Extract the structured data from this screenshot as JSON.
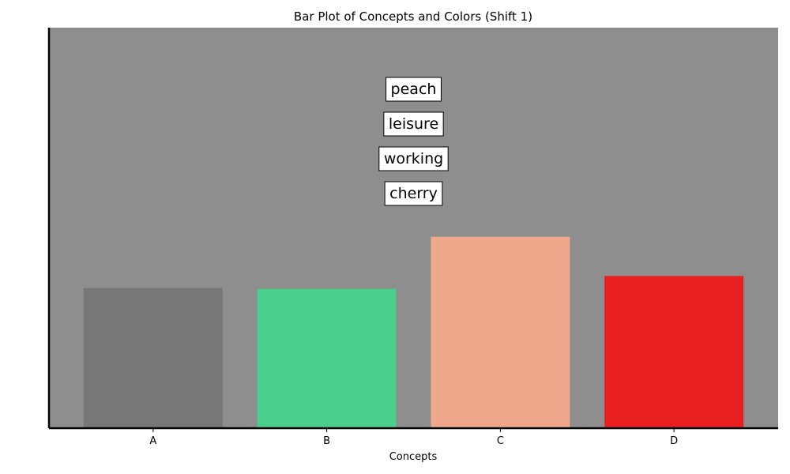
{
  "chart_data": {
    "type": "bar",
    "title": "Bar Plot of Concepts and Colors (Shift 1)",
    "xlabel": "Concepts",
    "ylabel": "",
    "categories": [
      "A",
      "B",
      "C",
      "D"
    ],
    "values": [
      3.5,
      3.48,
      4.78,
      3.8
    ],
    "ylim": [
      0,
      10
    ],
    "bar_colors": [
      "#777777",
      "#4acf8d",
      "#efa88b",
      "#e81f1f"
    ],
    "plot_background": "#8e8e8e",
    "annotations": [
      "peach",
      "leisure",
      "working",
      "cherry"
    ],
    "grid": false
  }
}
